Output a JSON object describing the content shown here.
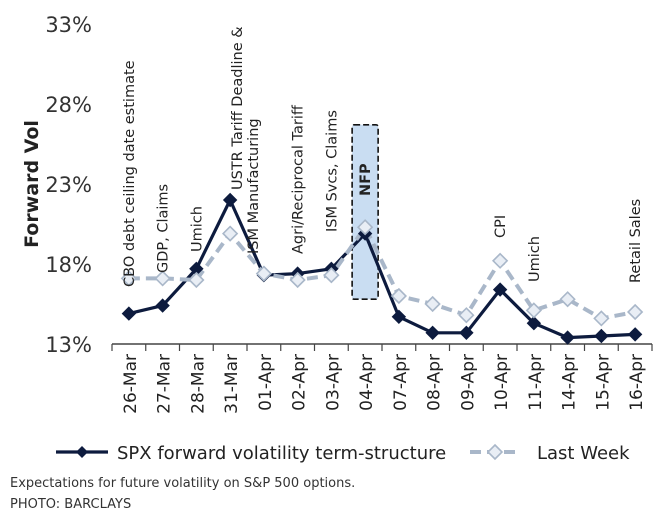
{
  "chart_data": {
    "type": "line",
    "ylabel": "Forward Vol",
    "ylim": [
      13,
      33
    ],
    "yticks": [
      "13%",
      "18%",
      "23%",
      "28%",
      "33%"
    ],
    "ytick_values": [
      13,
      18,
      23,
      28,
      33
    ],
    "categories": [
      "26-Mar",
      "27-Mar",
      "28-Mar",
      "31-Mar",
      "01-Apr",
      "02-Apr",
      "03-Apr",
      "04-Apr",
      "07-Apr",
      "08-Apr",
      "09-Apr",
      "10-Apr",
      "11-Apr",
      "14-Apr",
      "15-Apr",
      "16-Apr"
    ],
    "series": [
      {
        "name": "SPX forward volatility term-structure",
        "values": [
          14.9,
          15.4,
          17.7,
          22.0,
          17.3,
          17.4,
          17.7,
          19.9,
          14.7,
          13.7,
          13.7,
          16.4,
          14.3,
          13.4,
          13.5,
          13.6
        ],
        "color": "#0d1b3e",
        "style": "solid"
      },
      {
        "name": "Last Week",
        "values": [
          17.1,
          17.1,
          17.0,
          19.9,
          17.4,
          17.0,
          17.3,
          20.3,
          16.0,
          15.5,
          14.8,
          18.2,
          15.1,
          15.8,
          14.6,
          15.0
        ],
        "color": "#a9b7c9",
        "style": "dashed"
      }
    ],
    "annotations": [
      {
        "category": "26-Mar",
        "text": "CBO debt ceiling date estimate"
      },
      {
        "category": "27-Mar",
        "text": "GDP, Claims"
      },
      {
        "category": "28-Mar",
        "text": "Umich"
      },
      {
        "category": "31-Mar",
        "text": "USTR Tariff Deadline &"
      },
      {
        "category": "01-Apr",
        "text": "ISM Manufacturing"
      },
      {
        "category": "02-Apr",
        "text": "Agri/Reciprocal Tariff"
      },
      {
        "category": "03-Apr",
        "text": "ISM Svcs, Claims"
      },
      {
        "category": "04-Apr",
        "text": "NFP",
        "highlight": true
      },
      {
        "category": "10-Apr",
        "text": "CPI"
      },
      {
        "category": "11-Apr",
        "text": "Umich"
      },
      {
        "category": "16-Apr",
        "text": "Retail Sales"
      }
    ],
    "highlight_range": [
      15.8,
      26.7
    ],
    "highlight_color": "#c9ddf2",
    "grid": false,
    "legend_position": "bottom"
  },
  "caption": {
    "text": "Expectations for future volatility on S&P 500 options.",
    "credit": "PHOTO: BARCLAYS"
  }
}
